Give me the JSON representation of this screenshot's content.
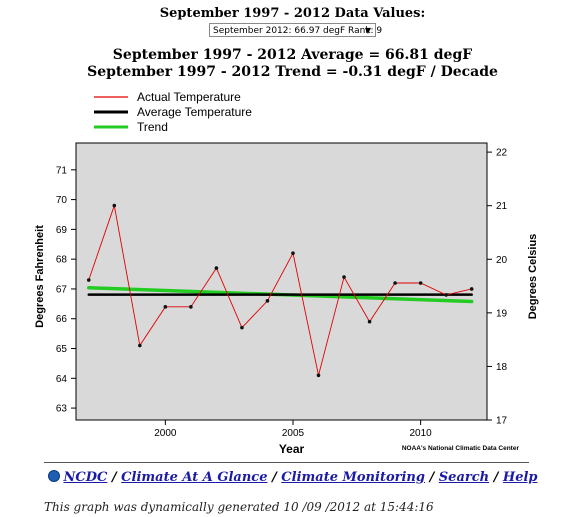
{
  "header": {
    "data_values_title": "September 1997 - 2012 Data Values:",
    "select_value": "September 2012: 66.97 degF  Rank: 9",
    "average_line": "September 1997 - 2012 Average = 66.81 degF",
    "trend_line": "September 1997 - 2012 Trend = -0.31 degF / Decade"
  },
  "chart_data": {
    "type": "line",
    "xlabel": "Year",
    "ylabel": "Degrees Fahrenheit",
    "y2label": "Degrees Celsius",
    "xlim": [
      1996.5,
      2012.6
    ],
    "ylim": [
      62.6,
      71.9
    ],
    "y2lim": [
      17.0,
      22.17
    ],
    "x_ticks": [
      2000,
      2005,
      2010
    ],
    "y_ticks": [
      63,
      64,
      65,
      66,
      67,
      68,
      69,
      70,
      71
    ],
    "y2_ticks": [
      17,
      18,
      19,
      20,
      21,
      22
    ],
    "grid": false,
    "legend_placement": "top-left",
    "background": "#d9d9d9",
    "credit": "NOAA's National Climatic Data Center",
    "series": [
      {
        "name": "Actual Temperature",
        "color": "#e00000",
        "x": [
          1997,
          1998,
          1999,
          2000,
          2001,
          2002,
          2003,
          2004,
          2005,
          2006,
          2007,
          2008,
          2009,
          2010,
          2011,
          2012
        ],
        "values": [
          67.3,
          69.8,
          65.1,
          66.4,
          66.4,
          67.7,
          65.7,
          66.6,
          68.2,
          64.1,
          67.4,
          65.9,
          67.2,
          67.2,
          66.8,
          67.0
        ]
      },
      {
        "name": "Average Temperature",
        "color": "#000000",
        "x": [
          1997,
          2012
        ],
        "values": [
          66.81,
          66.81
        ]
      },
      {
        "name": "Trend",
        "color": "#22cc22",
        "x": [
          1997,
          2012
        ],
        "values": [
          67.04,
          66.58
        ]
      }
    ]
  },
  "nav": {
    "ncdc": "NCDC",
    "climate_at_a_glance": "Climate At A Glance",
    "climate_monitoring": "Climate Monitoring",
    "search": "Search",
    "help": "Help",
    "separator": "/"
  },
  "footer_note": "This graph was dynamically generated 10 /09 /2012 at 15:44:16"
}
